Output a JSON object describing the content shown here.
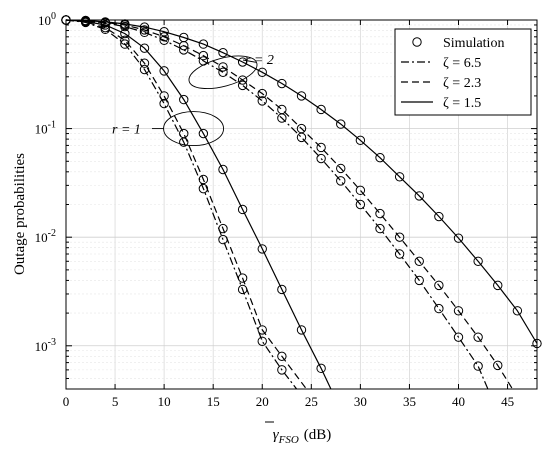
{
  "chart_data": {
    "type": "line",
    "title": "",
    "xlabel_symbol": "γ",
    "xlabel_sub": "FSO",
    "xlabel_unit": "(dB)",
    "ylabel": "Outage probabilities",
    "xlim": [
      0,
      48
    ],
    "ylim": [
      0.0004,
      1
    ],
    "yscale": "log",
    "grid": true,
    "legend_position": "top-right",
    "x_ticks": [
      0,
      5,
      10,
      15,
      20,
      25,
      30,
      35,
      40,
      45
    ],
    "y_ticks": [
      {
        "base": "10",
        "exp": "0",
        "value": 1
      },
      {
        "base": "10",
        "exp": "-1",
        "value": 0.1
      },
      {
        "base": "10",
        "exp": "-2",
        "value": 0.01
      },
      {
        "base": "10",
        "exp": "-3",
        "value": 0.001
      }
    ],
    "legend": [
      {
        "label": "Simulation",
        "style": "marker"
      },
      {
        "label": "ζ = 6.5",
        "style": "dashdot"
      },
      {
        "label": "ζ = 2.3",
        "style": "dashed"
      },
      {
        "label": "ζ = 1.5",
        "style": "solid"
      }
    ],
    "annotations": [
      {
        "text": "r = 1",
        "target_x": 13,
        "target_y": 0.1
      },
      {
        "text": "r = 2",
        "target_x": 16,
        "target_y": 0.33
      }
    ],
    "series": [
      {
        "group": "r = 1",
        "style": "dashdot",
        "color": "#000000",
        "x": [
          0,
          2,
          4,
          6,
          8,
          10,
          12,
          14,
          16,
          18,
          20,
          22,
          23.5
        ],
        "y": [
          1.0,
          0.95,
          0.82,
          0.6,
          0.35,
          0.17,
          0.075,
          0.028,
          0.0095,
          0.0033,
          0.0011,
          0.0006,
          0.0004
        ]
      },
      {
        "group": "r = 1",
        "style": "dashed",
        "color": "#000000",
        "x": [
          0,
          2,
          4,
          6,
          8,
          10,
          12,
          14,
          16,
          18,
          20,
          22,
          24.5
        ],
        "y": [
          1.0,
          0.96,
          0.85,
          0.65,
          0.4,
          0.2,
          0.09,
          0.034,
          0.012,
          0.0042,
          0.0014,
          0.0008,
          0.0004
        ]
      },
      {
        "group": "r = 1",
        "style": "solid",
        "color": "#000000",
        "x": [
          0,
          2,
          4,
          6,
          8,
          10,
          12,
          14,
          16,
          18,
          20,
          22,
          24,
          26,
          27
        ],
        "y": [
          1.0,
          0.97,
          0.9,
          0.75,
          0.55,
          0.34,
          0.185,
          0.09,
          0.042,
          0.018,
          0.0078,
          0.0033,
          0.0014,
          0.00062,
          0.0004
        ]
      },
      {
        "group": "r = 2",
        "style": "dashdot",
        "color": "#000000",
        "x": [
          0,
          2,
          4,
          6,
          8,
          10,
          12,
          14,
          16,
          18,
          20,
          22,
          24,
          26,
          28,
          30,
          32,
          34,
          36,
          38,
          40,
          42,
          43
        ],
        "y": [
          1.0,
          0.98,
          0.94,
          0.87,
          0.77,
          0.65,
          0.53,
          0.42,
          0.33,
          0.25,
          0.18,
          0.125,
          0.083,
          0.053,
          0.033,
          0.02,
          0.012,
          0.007,
          0.004,
          0.0022,
          0.0012,
          0.00065,
          0.0004
        ]
      },
      {
        "group": "r = 2",
        "style": "dashed",
        "color": "#000000",
        "x": [
          0,
          2,
          4,
          6,
          8,
          10,
          12,
          14,
          16,
          18,
          20,
          22,
          24,
          26,
          28,
          30,
          32,
          34,
          36,
          38,
          40,
          42,
          44,
          45.5
        ],
        "y": [
          1.0,
          0.98,
          0.95,
          0.9,
          0.81,
          0.7,
          0.58,
          0.47,
          0.37,
          0.28,
          0.21,
          0.15,
          0.1,
          0.067,
          0.043,
          0.027,
          0.0165,
          0.01,
          0.006,
          0.0036,
          0.0021,
          0.0012,
          0.00066,
          0.0004
        ]
      },
      {
        "group": "r = 2",
        "style": "solid",
        "color": "#000000",
        "x": [
          0,
          2,
          4,
          6,
          8,
          10,
          12,
          14,
          16,
          18,
          20,
          22,
          24,
          26,
          28,
          30,
          32,
          34,
          36,
          38,
          40,
          42,
          44,
          46,
          48
        ],
        "y": [
          1.0,
          0.99,
          0.96,
          0.92,
          0.86,
          0.78,
          0.69,
          0.6,
          0.5,
          0.41,
          0.33,
          0.26,
          0.2,
          0.15,
          0.11,
          0.078,
          0.054,
          0.036,
          0.024,
          0.0155,
          0.0098,
          0.006,
          0.0036,
          0.0021,
          0.00105
        ]
      }
    ],
    "markers": [
      {
        "x": [
          0,
          2,
          4,
          6,
          8,
          10,
          12,
          14,
          16,
          18,
          20,
          22
        ],
        "y": [
          1.0,
          0.95,
          0.82,
          0.6,
          0.35,
          0.17,
          0.075,
          0.028,
          0.0095,
          0.0033,
          0.0011,
          0.0006
        ]
      },
      {
        "x": [
          0,
          2,
          4,
          6,
          8,
          10,
          12,
          14,
          16,
          18,
          20,
          22
        ],
        "y": [
          1.0,
          0.96,
          0.85,
          0.65,
          0.4,
          0.2,
          0.09,
          0.034,
          0.012,
          0.0042,
          0.0014,
          0.0008
        ]
      },
      {
        "x": [
          0,
          2,
          4,
          6,
          8,
          10,
          12,
          14,
          16,
          18,
          20,
          22,
          24,
          26
        ],
        "y": [
          1.0,
          0.97,
          0.9,
          0.75,
          0.55,
          0.34,
          0.185,
          0.09,
          0.042,
          0.018,
          0.0078,
          0.0033,
          0.0014,
          0.00062
        ]
      },
      {
        "x": [
          0,
          2,
          4,
          6,
          8,
          10,
          12,
          14,
          16,
          18,
          20,
          22,
          24,
          26,
          28,
          30,
          32,
          34,
          36,
          38,
          40,
          42
        ],
        "y": [
          1.0,
          0.98,
          0.94,
          0.87,
          0.77,
          0.65,
          0.53,
          0.42,
          0.33,
          0.25,
          0.18,
          0.125,
          0.083,
          0.053,
          0.033,
          0.02,
          0.012,
          0.007,
          0.004,
          0.0022,
          0.0012,
          0.00065
        ]
      },
      {
        "x": [
          0,
          2,
          4,
          6,
          8,
          10,
          12,
          14,
          16,
          18,
          20,
          22,
          24,
          26,
          28,
          30,
          32,
          34,
          36,
          38,
          40,
          42,
          44
        ],
        "y": [
          1.0,
          0.98,
          0.95,
          0.9,
          0.81,
          0.7,
          0.58,
          0.47,
          0.37,
          0.28,
          0.21,
          0.15,
          0.1,
          0.067,
          0.043,
          0.027,
          0.0165,
          0.01,
          0.006,
          0.0036,
          0.0021,
          0.0012,
          0.00066
        ]
      },
      {
        "x": [
          0,
          2,
          4,
          6,
          8,
          10,
          12,
          14,
          16,
          18,
          20,
          22,
          24,
          26,
          28,
          30,
          32,
          34,
          36,
          38,
          40,
          42,
          44,
          46,
          48
        ],
        "y": [
          1.0,
          0.99,
          0.96,
          0.92,
          0.86,
          0.78,
          0.69,
          0.6,
          0.5,
          0.41,
          0.33,
          0.26,
          0.2,
          0.15,
          0.11,
          0.078,
          0.054,
          0.036,
          0.024,
          0.0155,
          0.0098,
          0.006,
          0.0036,
          0.0021,
          0.00105
        ]
      }
    ]
  }
}
